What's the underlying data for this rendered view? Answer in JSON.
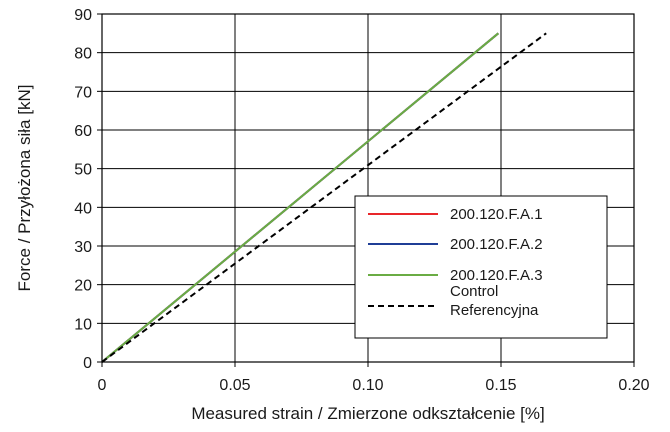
{
  "chart_data": {
    "type": "line",
    "xlabel": "Measured strain / Zmierzone odkształcenie [%]",
    "ylabel": "Force / Przyłożona siła [kN]",
    "xlim": [
      0,
      0.2
    ],
    "ylim": [
      0,
      90
    ],
    "x_ticks": [
      0,
      0.05,
      0.1,
      0.15,
      0.2
    ],
    "x_tick_labels": [
      "0",
      "0.05",
      "0.10",
      "0.15",
      "0.20"
    ],
    "y_ticks": [
      0,
      10,
      20,
      30,
      40,
      50,
      60,
      70,
      80,
      90
    ],
    "y_tick_labels": [
      "0",
      "10",
      "20",
      "30",
      "40",
      "50",
      "60",
      "70",
      "80",
      "90"
    ],
    "grid": true,
    "legend_position": "bottom-right",
    "series": [
      {
        "name": "200.120.F.A.1",
        "color": "#e8262a",
        "style": "solid",
        "x": [
          0,
          0.149
        ],
        "y": [
          0,
          85
        ]
      },
      {
        "name": "200.120.F.A.2",
        "color": "#1f3e96",
        "style": "solid",
        "x": [
          0,
          0.149
        ],
        "y": [
          0,
          85
        ]
      },
      {
        "name": "200.120.F.A.3",
        "color": "#6aac44",
        "style": "solid",
        "x": [
          0,
          0.149
        ],
        "y": [
          0,
          85
        ]
      },
      {
        "name": "Control\nReferencyjna",
        "color": "#000000",
        "style": "dashed",
        "x": [
          0,
          0.167
        ],
        "y": [
          0,
          85
        ]
      }
    ]
  }
}
